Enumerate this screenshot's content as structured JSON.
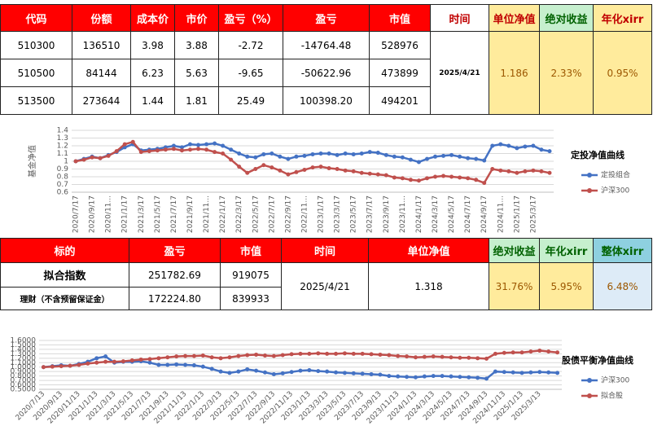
{
  "table1": {
    "headers": [
      "代码",
      "份额",
      "成本价",
      "市价",
      "盈亏（%）",
      "盈亏",
      "市值",
      "时间",
      "单位净值",
      "绝对收益",
      "年化xirr"
    ],
    "rows": [
      [
        "510300",
        "136510",
        "3.98",
        "3.88",
        "-2.72",
        "-14764.48",
        "528976"
      ],
      [
        "510500",
        "84144",
        "6.23",
        "5.63",
        "-9.65",
        "-50622.96",
        "473899"
      ],
      [
        "513500",
        "273644",
        "1.44",
        "1.81",
        "25.49",
        "100398.20",
        "494201"
      ]
    ],
    "time": "2025/4/21",
    "nav": "1.186",
    "absolute_return": "2.33%",
    "xirr": "0.95%"
  },
  "chart_data": [
    {
      "type": "line",
      "title": "定投净值曲线",
      "y_label": "基金净值",
      "categories": [
        "2020/7/17",
        null,
        "2020/9/17",
        null,
        "2020/11...",
        null,
        "2021/1/17",
        null,
        "2021/3/17",
        null,
        "2021/5/17",
        null,
        "2021/7/17",
        null,
        "2021/9/17",
        null,
        "2021/11...",
        null,
        "2022/1/17",
        null,
        "2022/3/17",
        null,
        "2022/5/17",
        null,
        "2022/7/17",
        null,
        "2022/9/17",
        null,
        "2022/11...",
        null,
        "2023/1/17",
        null,
        "2023/3/17",
        null,
        "2023/5/17",
        null,
        "2023/7/17",
        null,
        "2023/9/17",
        null,
        "2023/11...",
        null,
        "2024/1/17",
        null,
        "2024/3/17",
        null,
        "2024/5/17",
        null,
        "2024/7/17",
        null,
        "2024/9/17",
        null,
        "2024/11...",
        null,
        "2025/1/17",
        null,
        "2025/3/17",
        null,
        null
      ],
      "series": [
        {
          "name": "定投组合",
          "color": "#4472c4",
          "values": [
            1.0,
            1.03,
            1.06,
            1.04,
            1.08,
            1.12,
            1.18,
            1.22,
            1.14,
            1.15,
            1.16,
            1.18,
            1.2,
            1.18,
            1.22,
            1.21,
            1.22,
            1.23,
            1.2,
            1.15,
            1.1,
            1.06,
            1.05,
            1.09,
            1.1,
            1.06,
            1.03,
            1.06,
            1.07,
            1.09,
            1.1,
            1.1,
            1.08,
            1.1,
            1.09,
            1.1,
            1.12,
            1.11,
            1.08,
            1.06,
            1.05,
            1.02,
            0.99,
            1.03,
            1.06,
            1.07,
            1.08,
            1.06,
            1.04,
            1.03,
            1.01,
            1.2,
            1.22,
            1.2,
            1.17,
            1.19,
            1.2,
            1.15,
            1.13
          ]
        },
        {
          "name": "沪深300",
          "color": "#c0504d",
          "values": [
            1.0,
            1.02,
            1.05,
            1.04,
            1.07,
            1.13,
            1.22,
            1.25,
            1.12,
            1.13,
            1.14,
            1.15,
            1.16,
            1.14,
            1.15,
            1.16,
            1.15,
            1.12,
            1.1,
            1.02,
            0.93,
            0.85,
            0.9,
            0.95,
            0.92,
            0.88,
            0.83,
            0.86,
            0.89,
            0.92,
            0.93,
            0.91,
            0.9,
            0.88,
            0.87,
            0.85,
            0.84,
            0.83,
            0.82,
            0.79,
            0.78,
            0.76,
            0.75,
            0.78,
            0.8,
            0.81,
            0.8,
            0.79,
            0.78,
            0.76,
            0.72,
            0.9,
            0.88,
            0.87,
            0.85,
            0.87,
            0.88,
            0.87,
            0.85
          ]
        }
      ],
      "ylim": [
        0.6,
        1.4
      ],
      "yticks": [
        0.6,
        0.7,
        0.8,
        0.9,
        1,
        1.1,
        1.2,
        1.3,
        1.4
      ],
      "grid": true,
      "legend": "right"
    },
    {
      "type": "line",
      "title": "股债平衡净值曲线",
      "categories": [
        "2020/7/13",
        null,
        "2020/9/13",
        null,
        "2020/11/13",
        null,
        "2021/1/13",
        null,
        "2021/3/13",
        null,
        "2021/5/13",
        null,
        "2021/7/13",
        null,
        "2021/9/13",
        null,
        "2021/11/13",
        null,
        "2022/1/13",
        null,
        "2022/3/13",
        null,
        "2022/5/13",
        null,
        "2022/7/13",
        null,
        "2022/9/13",
        null,
        "2022/11/13",
        null,
        "2023/1/13",
        null,
        "2023/3/13",
        null,
        "2023/5/13",
        null,
        "2023/7/13",
        null,
        "2023/9/13",
        null,
        "2023/11/13",
        null,
        "2024/1/13",
        null,
        "2024/3/13",
        null,
        "2024/5/13",
        null,
        "2024/7/13",
        null,
        "2024/9/13",
        null,
        "2024/11/13",
        null,
        "2025/1/13",
        null,
        "2025/3/13",
        null,
        null
      ],
      "series": [
        {
          "name": "沪深300",
          "color": "#4472c4",
          "values": [
            1.0,
            1.02,
            1.04,
            1.03,
            1.07,
            1.12,
            1.2,
            1.24,
            1.1,
            1.12,
            1.12,
            1.13,
            1.1,
            1.05,
            1.05,
            1.06,
            1.05,
            1.04,
            1.01,
            0.96,
            0.9,
            0.87,
            0.9,
            0.95,
            0.92,
            0.88,
            0.84,
            0.86,
            0.89,
            0.92,
            0.93,
            0.91,
            0.9,
            0.88,
            0.87,
            0.86,
            0.85,
            0.84,
            0.83,
            0.8,
            0.79,
            0.78,
            0.77,
            0.79,
            0.8,
            0.8,
            0.79,
            0.78,
            0.77,
            0.76,
            0.74,
            0.9,
            0.89,
            0.88,
            0.87,
            0.88,
            0.89,
            0.88,
            0.87
          ]
        },
        {
          "name": "拟合股",
          "color": "#c0504d",
          "values": [
            1.0,
            1.01,
            1.02,
            1.03,
            1.05,
            1.08,
            1.1,
            1.12,
            1.12,
            1.13,
            1.15,
            1.17,
            1.18,
            1.2,
            1.22,
            1.24,
            1.25,
            1.25,
            1.26,
            1.22,
            1.2,
            1.22,
            1.25,
            1.27,
            1.28,
            1.26,
            1.25,
            1.27,
            1.29,
            1.3,
            1.3,
            1.31,
            1.3,
            1.3,
            1.31,
            1.3,
            1.3,
            1.29,
            1.28,
            1.27,
            1.25,
            1.24,
            1.22,
            1.23,
            1.24,
            1.23,
            1.22,
            1.21,
            1.21,
            1.2,
            1.19,
            1.3,
            1.32,
            1.33,
            1.33,
            1.35,
            1.37,
            1.35,
            1.33
          ]
        }
      ],
      "ylim": [
        0.5,
        1.6
      ],
      "yticks": [
        {
          "value": 0.5,
          "label": "0.5000"
        },
        {
          "value": 0.6,
          "label": "0.6000"
        },
        {
          "value": 0.7,
          "label": "0.7000"
        },
        {
          "value": 0.8,
          "label": "0.8000"
        },
        {
          "value": 0.9,
          "label": "0.9000"
        },
        {
          "value": 1.0,
          "label": "1.0000"
        },
        {
          "value": 1.1,
          "label": "1.1000"
        },
        {
          "value": 1.2,
          "label": "1.2000"
        },
        {
          "value": 1.3,
          "label": "1.3000"
        },
        {
          "value": 1.4,
          "label": "1.4000"
        },
        {
          "value": 1.5,
          "label": "1.5000"
        },
        {
          "value": 1.6,
          "label": "1.6000"
        }
      ],
      "grid": true,
      "legend": "right"
    }
  ],
  "table2": {
    "headers": [
      "标的",
      "盈亏",
      "市值",
      "时间",
      "单位净值",
      "绝对收益",
      "年化xirr",
      "整体xirr"
    ],
    "rows": [
      [
        "拟合指数",
        "251782.69",
        "919075"
      ],
      [
        "理财（不含预留保证金）",
        "172224.80",
        "839933"
      ]
    ],
    "time": "2025/4/21",
    "nav": "1.318",
    "absolute_return": "31.76%",
    "xirr": "5.95%",
    "overall_xirr": "6.48%"
  }
}
